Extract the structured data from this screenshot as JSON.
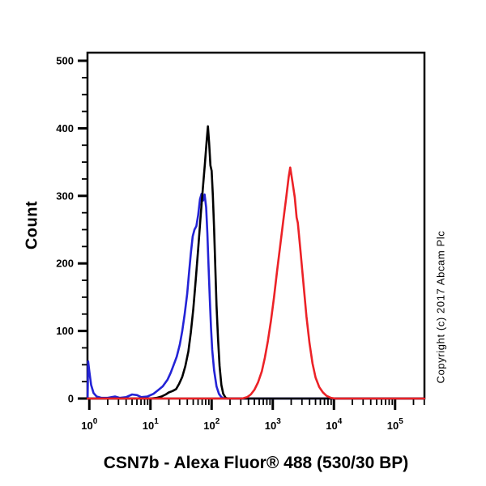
{
  "page": {
    "background": "#ffffff"
  },
  "chart_data": {
    "type": "line",
    "subtype": "flow-cytometry-histogram",
    "title": "",
    "xlabel": "CSN7b - Alexa Fluor® 488 (530/30 BP)",
    "ylabel": "Count",
    "copyright": "Copyright (c) 2017 Abcam Plc",
    "x_scale": "log10",
    "x_log_range": [
      -0.03,
      5.48
    ],
    "x_ticks_exponents": [
      0,
      1,
      2,
      3,
      4,
      5
    ],
    "x_tick_base": "10",
    "y_range": [
      0,
      512
    ],
    "y_ticks": [
      0,
      100,
      200,
      300,
      400,
      500
    ],
    "y_minor_step": 25,
    "grid": false,
    "legend": "none",
    "axis_color": "#000000",
    "series": [
      {
        "name": "blue-curve",
        "color": "#2323d6",
        "points": [
          [
            -0.027,
            2
          ],
          [
            -0.02,
            55
          ],
          [
            0.0,
            40
          ],
          [
            0.03,
            20
          ],
          [
            0.07,
            8
          ],
          [
            0.12,
            3
          ],
          [
            0.2,
            1
          ],
          [
            0.3,
            1
          ],
          [
            0.42,
            3
          ],
          [
            0.5,
            1
          ],
          [
            0.6,
            2
          ],
          [
            0.7,
            6
          ],
          [
            0.78,
            5
          ],
          [
            0.85,
            2
          ],
          [
            0.95,
            3
          ],
          [
            1.05,
            7
          ],
          [
            1.12,
            12
          ],
          [
            1.2,
            18
          ],
          [
            1.28,
            28
          ],
          [
            1.33,
            38
          ],
          [
            1.38,
            50
          ],
          [
            1.43,
            62
          ],
          [
            1.48,
            80
          ],
          [
            1.52,
            100
          ],
          [
            1.56,
            125
          ],
          [
            1.6,
            155
          ],
          [
            1.63,
            185
          ],
          [
            1.66,
            215
          ],
          [
            1.69,
            240
          ],
          [
            1.72,
            250
          ],
          [
            1.75,
            255
          ],
          [
            1.78,
            272
          ],
          [
            1.81,
            295
          ],
          [
            1.835,
            303
          ],
          [
            1.86,
            293
          ],
          [
            1.885,
            302
          ],
          [
            1.91,
            283
          ],
          [
            1.93,
            245
          ],
          [
            1.95,
            195
          ],
          [
            1.97,
            148
          ],
          [
            1.99,
            105
          ],
          [
            2.01,
            72
          ],
          [
            2.04,
            42
          ],
          [
            2.08,
            18
          ],
          [
            2.12,
            7
          ],
          [
            2.16,
            2
          ],
          [
            2.2,
            0
          ],
          [
            5.477,
            0
          ]
        ]
      },
      {
        "name": "black-curve",
        "color": "#000000",
        "points": [
          [
            -0.027,
            0
          ],
          [
            1.0,
            0
          ],
          [
            1.1,
            1
          ],
          [
            1.18,
            3
          ],
          [
            1.25,
            6
          ],
          [
            1.3,
            9
          ],
          [
            1.36,
            11
          ],
          [
            1.42,
            14
          ],
          [
            1.47,
            22
          ],
          [
            1.52,
            32
          ],
          [
            1.57,
            48
          ],
          [
            1.62,
            70
          ],
          [
            1.66,
            98
          ],
          [
            1.7,
            132
          ],
          [
            1.74,
            175
          ],
          [
            1.78,
            222
          ],
          [
            1.82,
            270
          ],
          [
            1.86,
            315
          ],
          [
            1.89,
            348
          ],
          [
            1.92,
            382
          ],
          [
            1.94,
            403
          ],
          [
            1.96,
            378
          ],
          [
            1.98,
            345
          ],
          [
            2.0,
            337
          ],
          [
            2.02,
            300
          ],
          [
            2.04,
            252
          ],
          [
            2.06,
            195
          ],
          [
            2.08,
            138
          ],
          [
            2.105,
            88
          ],
          [
            2.13,
            48
          ],
          [
            2.16,
            20
          ],
          [
            2.19,
            7
          ],
          [
            2.23,
            1
          ],
          [
            2.27,
            0
          ],
          [
            5.477,
            0
          ]
        ]
      },
      {
        "name": "red-curve",
        "color": "#ec2227",
        "points": [
          [
            -0.027,
            0
          ],
          [
            2.5,
            0
          ],
          [
            2.58,
            2
          ],
          [
            2.64,
            6
          ],
          [
            2.7,
            13
          ],
          [
            2.76,
            24
          ],
          [
            2.82,
            40
          ],
          [
            2.87,
            60
          ],
          [
            2.92,
            85
          ],
          [
            2.97,
            115
          ],
          [
            3.02,
            150
          ],
          [
            3.07,
            188
          ],
          [
            3.12,
            225
          ],
          [
            3.17,
            262
          ],
          [
            3.22,
            298
          ],
          [
            3.26,
            328
          ],
          [
            3.285,
            342
          ],
          [
            3.32,
            322
          ],
          [
            3.36,
            298
          ],
          [
            3.39,
            268
          ],
          [
            3.41,
            260
          ],
          [
            3.45,
            222
          ],
          [
            3.5,
            172
          ],
          [
            3.55,
            122
          ],
          [
            3.6,
            82
          ],
          [
            3.65,
            52
          ],
          [
            3.7,
            31
          ],
          [
            3.76,
            17
          ],
          [
            3.82,
            9
          ],
          [
            3.88,
            4
          ],
          [
            3.95,
            1
          ],
          [
            4.02,
            0
          ],
          [
            5.477,
            0
          ]
        ]
      }
    ]
  }
}
